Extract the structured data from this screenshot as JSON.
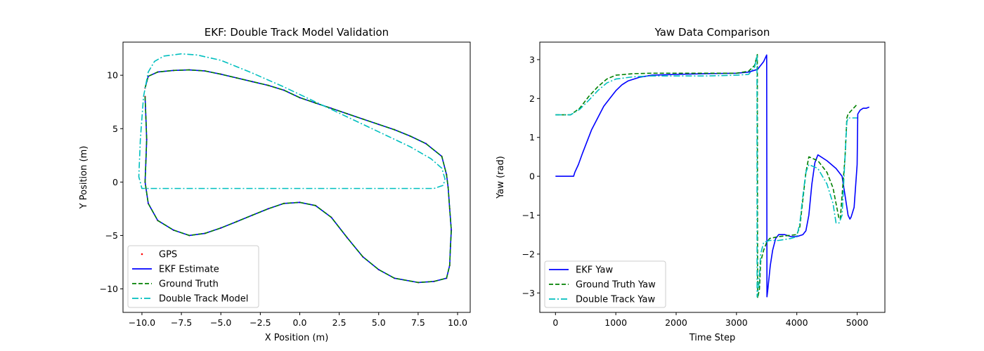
{
  "chart_data": [
    {
      "type": "line",
      "title": "EKF: Double Track Model Validation",
      "xlabel": "X Position (m)",
      "ylabel": "Y Position (m)",
      "xlim": [
        -11.2,
        10.8
      ],
      "ylim": [
        -12.2,
        13.1
      ],
      "xticks": [
        -10.0,
        -7.5,
        -5.0,
        -2.5,
        0.0,
        2.5,
        5.0,
        7.5,
        10.0
      ],
      "xtick_labels": [
        "−10.0",
        "−7.5",
        "−5.0",
        "−2.5",
        "0.0",
        "2.5",
        "5.0",
        "7.5",
        "10.0"
      ],
      "yticks": [
        -10,
        -5,
        0,
        5,
        10
      ],
      "ytick_labels": [
        "−10",
        "−5",
        "0",
        "5",
        "10"
      ],
      "legend_position": "lower-left",
      "grid": false,
      "series": [
        {
          "name": "GPS",
          "style": "points",
          "color": "#ff0000",
          "x": [
            -9.8,
            -9.6,
            -9.0,
            -8.0,
            -7.0,
            -6.0,
            -5.0,
            -4.0,
            -3.0,
            -2.0,
            -1.0,
            0.0,
            1.0,
            2.0,
            3.0,
            4.0,
            5.0,
            6.0,
            7.0,
            8.0,
            9.0,
            9.3,
            9.4,
            9.5,
            9.6,
            9.55,
            9.5,
            9.3,
            8.5,
            7.5,
            6.0,
            5.0,
            4.0,
            3.0,
            2.0,
            1.0,
            0.0,
            -1.0,
            -2.0,
            -3.0,
            -4.0,
            -5.0,
            -6.0,
            -7.0,
            -8.0,
            -9.0,
            -9.6,
            -9.8,
            -9.75,
            -9.7,
            -9.75,
            -9.8
          ],
          "y": [
            8.8,
            9.9,
            10.3,
            10.45,
            10.5,
            10.4,
            10.1,
            9.75,
            9.4,
            9.05,
            8.6,
            7.9,
            7.4,
            6.9,
            6.4,
            5.9,
            5.4,
            4.9,
            4.3,
            3.6,
            2.4,
            0.7,
            -0.5,
            -2.5,
            -4.5,
            -6.0,
            -7.8,
            -9.0,
            -9.3,
            -9.4,
            -9.0,
            -8.2,
            -7.0,
            -5.2,
            -3.3,
            -2.2,
            -1.9,
            -2.0,
            -2.5,
            -3.1,
            -3.7,
            -4.3,
            -4.8,
            -5.0,
            -4.5,
            -3.6,
            -2.0,
            0.0,
            2.0,
            4.0,
            6.0,
            8.0
          ]
        },
        {
          "name": "EKF Estimate",
          "style": "solid",
          "color": "#0000ff",
          "x": [
            -9.8,
            -9.6,
            -9.0,
            -8.0,
            -7.0,
            -6.0,
            -5.0,
            -4.0,
            -3.0,
            -2.0,
            -1.0,
            0.0,
            1.0,
            2.0,
            3.0,
            4.0,
            5.0,
            6.0,
            7.0,
            8.0,
            9.0,
            9.3,
            9.4,
            9.5,
            9.6,
            9.55,
            9.5,
            9.3,
            8.5,
            7.5,
            6.0,
            5.0,
            4.0,
            3.0,
            2.0,
            1.0,
            0.0,
            -1.0,
            -2.0,
            -3.0,
            -4.0,
            -5.0,
            -6.0,
            -7.0,
            -8.0,
            -9.0,
            -9.6,
            -9.8,
            -9.75,
            -9.7,
            -9.75,
            -9.8
          ],
          "y": [
            8.8,
            9.9,
            10.3,
            10.45,
            10.5,
            10.4,
            10.1,
            9.75,
            9.4,
            9.05,
            8.6,
            7.9,
            7.4,
            6.9,
            6.4,
            5.9,
            5.4,
            4.9,
            4.3,
            3.6,
            2.4,
            0.7,
            -0.5,
            -2.5,
            -4.5,
            -6.0,
            -7.8,
            -9.0,
            -9.3,
            -9.4,
            -9.0,
            -8.2,
            -7.0,
            -5.2,
            -3.3,
            -2.2,
            -1.9,
            -2.0,
            -2.5,
            -3.1,
            -3.7,
            -4.3,
            -4.8,
            -5.0,
            -4.5,
            -3.6,
            -2.0,
            0.0,
            2.0,
            4.0,
            6.0,
            8.0
          ]
        },
        {
          "name": "Ground Truth",
          "style": "dashed",
          "color": "#008000",
          "x": [
            -9.8,
            -9.6,
            -9.0,
            -8.0,
            -7.0,
            -6.0,
            -5.0,
            -4.0,
            -3.0,
            -2.0,
            -1.0,
            0.0,
            1.0,
            2.0,
            3.0,
            4.0,
            5.0,
            6.0,
            7.0,
            8.0,
            9.0,
            9.3,
            9.4,
            9.5,
            9.6,
            9.55,
            9.5,
            9.3,
            8.5,
            7.5,
            6.0,
            5.0,
            4.0,
            3.0,
            2.0,
            1.0,
            0.0,
            -1.0,
            -2.0,
            -3.0,
            -4.0,
            -5.0,
            -6.0,
            -7.0,
            -8.0,
            -9.0,
            -9.6,
            -9.8,
            -9.75,
            -9.7,
            -9.75,
            -9.8
          ],
          "y": [
            8.8,
            9.9,
            10.3,
            10.45,
            10.5,
            10.4,
            10.1,
            9.75,
            9.4,
            9.05,
            8.6,
            7.9,
            7.4,
            6.9,
            6.4,
            5.9,
            5.4,
            4.9,
            4.3,
            3.6,
            2.4,
            0.7,
            -0.5,
            -2.5,
            -4.5,
            -6.0,
            -7.8,
            -9.0,
            -9.3,
            -9.4,
            -9.0,
            -8.2,
            -7.0,
            -5.2,
            -3.3,
            -2.2,
            -1.9,
            -2.0,
            -2.5,
            -3.1,
            -3.7,
            -4.3,
            -4.8,
            -5.0,
            -4.5,
            -3.6,
            -2.0,
            0.0,
            2.0,
            4.0,
            6.0,
            8.0
          ]
        },
        {
          "name": "Double Track Model",
          "style": "dashdot",
          "color": "#00bfbf",
          "x": [
            -9.9,
            -9.6,
            -9.2,
            -8.6,
            -7.5,
            -6.5,
            -5.0,
            -3.0,
            -1.0,
            1.0,
            3.0,
            5.0,
            7.0,
            8.3,
            9.0,
            9.2,
            9.1,
            8.5,
            5.5,
            2.0,
            0.0,
            -2.0,
            -4.0,
            -6.0,
            -7.5,
            -8.5,
            -9.5,
            -10.0,
            -10.2,
            -10.1,
            -9.9
          ],
          "y": [
            8.0,
            10.3,
            11.3,
            11.8,
            12.0,
            11.9,
            11.4,
            10.2,
            8.9,
            7.5,
            6.1,
            4.7,
            3.3,
            2.2,
            1.3,
            0.3,
            -0.3,
            -0.6,
            -0.6,
            -0.6,
            -0.6,
            -0.6,
            -0.6,
            -0.6,
            -0.6,
            -0.6,
            -0.6,
            -0.6,
            0.5,
            4.0,
            8.0
          ]
        }
      ]
    },
    {
      "type": "line",
      "title": "Yaw Data Comparison",
      "xlabel": "Time Step",
      "ylabel": "Yaw (rad)",
      "xlim": [
        -260,
        5460
      ],
      "ylim": [
        -3.5,
        3.45
      ],
      "xticks": [
        0,
        1000,
        2000,
        3000,
        4000,
        5000
      ],
      "xtick_labels": [
        "0",
        "1000",
        "2000",
        "3000",
        "4000",
        "5000"
      ],
      "yticks": [
        -3,
        -2,
        -1,
        0,
        1,
        2,
        3
      ],
      "ytick_labels": [
        "−3",
        "−2",
        "−1",
        "0",
        "1",
        "2",
        "3"
      ],
      "legend_position": "lower-left",
      "grid": false,
      "series": [
        {
          "name": "EKF Yaw",
          "style": "solid",
          "color": "#0000ff",
          "x": [
            0,
            300,
            320,
            380,
            450,
            500,
            600,
            700,
            800,
            900,
            1000,
            1100,
            1200,
            1400,
            1600,
            2000,
            2500,
            3000,
            3200,
            3350,
            3450,
            3500,
            3505,
            3520,
            3540,
            3560,
            3600,
            3650,
            3700,
            3800,
            3900,
            4000,
            4100,
            4150,
            4200,
            4250,
            4300,
            4350,
            4500,
            4650,
            4750,
            4850,
            4880,
            4900,
            4950,
            5000,
            5010,
            5050,
            5100,
            5150,
            5200
          ],
          "y": [
            0,
            0,
            0.1,
            0.3,
            0.6,
            0.8,
            1.2,
            1.5,
            1.8,
            2.0,
            2.2,
            2.35,
            2.45,
            2.55,
            2.6,
            2.62,
            2.64,
            2.65,
            2.68,
            2.75,
            2.95,
            3.12,
            -3.1,
            -2.9,
            -2.6,
            -2.3,
            -1.9,
            -1.6,
            -1.5,
            -1.5,
            -1.55,
            -1.55,
            -1.5,
            -1.4,
            -1.0,
            -0.2,
            0.35,
            0.55,
            0.4,
            0.2,
            0.0,
            -1.0,
            -1.1,
            -1.05,
            -0.8,
            0.3,
            1.6,
            1.7,
            1.75,
            1.75,
            1.78
          ]
        },
        {
          "name": "Ground Truth Yaw",
          "style": "dashed",
          "color": "#008000",
          "x": [
            0,
            250,
            400,
            550,
            700,
            850,
            1000,
            1300,
            1600,
            2000,
            2500,
            3000,
            3200,
            3300,
            3345,
            3350,
            3380,
            3400,
            3450,
            3500,
            3550,
            3700,
            4000,
            4050,
            4100,
            4150,
            4200,
            4350,
            4500,
            4600,
            4700,
            4720,
            4800,
            4830,
            4850,
            5000
          ],
          "y": [
            1.58,
            1.58,
            1.75,
            2.05,
            2.3,
            2.5,
            2.6,
            2.64,
            2.65,
            2.65,
            2.65,
            2.65,
            2.7,
            2.85,
            3.13,
            -3.13,
            -2.9,
            -2.2,
            -1.9,
            -1.7,
            -1.6,
            -1.55,
            -1.5,
            -1.3,
            -0.6,
            0.1,
            0.5,
            0.4,
            0.1,
            -0.3,
            -1.1,
            -1.1,
            0.5,
            1.5,
            1.6,
            1.85
          ]
        },
        {
          "name": "Double Track Yaw",
          "style": "dashdot",
          "color": "#00bfbf",
          "x": [
            0,
            250,
            400,
            550,
            700,
            850,
            1000,
            1300,
            1600,
            2000,
            2500,
            3000,
            3200,
            3300,
            3340,
            3342,
            3370,
            3400,
            3450,
            3550,
            3700,
            3900,
            4000,
            4050,
            4100,
            4150,
            4200,
            4350,
            4500,
            4600,
            4650,
            4700,
            4750,
            4800,
            4830,
            4850,
            5000
          ],
          "y": [
            1.58,
            1.58,
            1.72,
            1.95,
            2.2,
            2.4,
            2.5,
            2.56,
            2.58,
            2.58,
            2.58,
            2.6,
            2.62,
            2.8,
            3.1,
            -3.1,
            -2.8,
            -2.0,
            -1.7,
            -1.65,
            -1.65,
            -1.6,
            -1.55,
            -1.2,
            -0.5,
            0.1,
            0.3,
            0.2,
            -0.2,
            -0.7,
            -1.2,
            -1.2,
            -1.0,
            0.5,
            1.4,
            1.5,
            1.5
          ]
        }
      ]
    }
  ]
}
